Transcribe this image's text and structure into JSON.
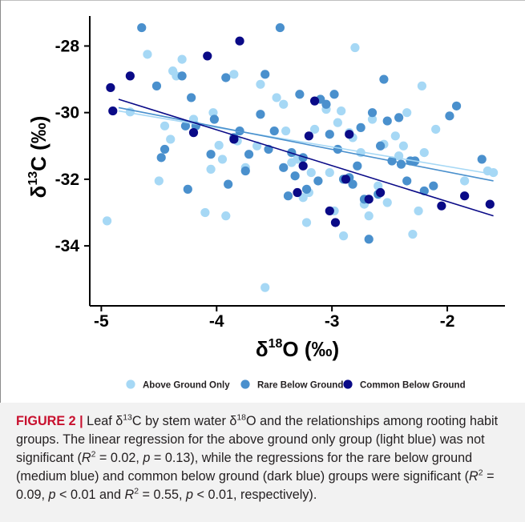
{
  "chart_data": {
    "type": "scatter",
    "xlabel": "δ18O (‰)",
    "ylabel": "δ13C (‰)",
    "xlim": [
      -5.1,
      -1.5
    ],
    "ylim": [
      -35.8,
      -27.1
    ],
    "x_ticks": [
      -5,
      -4,
      -3,
      -2
    ],
    "x_tick_labels": [
      "-5",
      "-4",
      "-3",
      "-2"
    ],
    "y_ticks": [
      -28,
      -30,
      -32,
      -34
    ],
    "y_tick_labels": [
      "-28",
      "-30",
      "-32",
      "-34"
    ],
    "grid": false,
    "legend_position": "bottom",
    "series": [
      {
        "name": "Above Ground Only",
        "color": "#a6d8f5",
        "points": [
          [
            -4.95,
            -33.25
          ],
          [
            -4.75,
            -29.98
          ],
          [
            -4.6,
            -28.25
          ],
          [
            -4.5,
            -32.05
          ],
          [
            -4.45,
            -30.4
          ],
          [
            -4.4,
            -30.8
          ],
          [
            -4.38,
            -28.75
          ],
          [
            -4.35,
            -28.9
          ],
          [
            -4.3,
            -28.4
          ],
          [
            -4.2,
            -30.2
          ],
          [
            -4.1,
            -33.0
          ],
          [
            -4.05,
            -31.7
          ],
          [
            -4.03,
            -30.0
          ],
          [
            -3.98,
            -30.98
          ],
          [
            -3.95,
            -31.4
          ],
          [
            -3.92,
            -33.1
          ],
          [
            -3.85,
            -28.85
          ],
          [
            -3.82,
            -30.85
          ],
          [
            -3.75,
            -31.65
          ],
          [
            -3.65,
            -31.0
          ],
          [
            -3.62,
            -29.15
          ],
          [
            -3.58,
            -35.25
          ],
          [
            -3.48,
            -29.55
          ],
          [
            -3.42,
            -29.75
          ],
          [
            -3.4,
            -30.55
          ],
          [
            -3.35,
            -31.5
          ],
          [
            -3.3,
            -31.4
          ],
          [
            -3.25,
            -32.55
          ],
          [
            -3.22,
            -33.3
          ],
          [
            -3.2,
            -32.4
          ],
          [
            -3.18,
            -31.8
          ],
          [
            -3.15,
            -30.5
          ],
          [
            -3.05,
            -29.9
          ],
          [
            -3.02,
            -31.8
          ],
          [
            -2.98,
            -32.95
          ],
          [
            -2.95,
            -30.3
          ],
          [
            -2.92,
            -29.95
          ],
          [
            -2.9,
            -33.7
          ],
          [
            -2.85,
            -30.6
          ],
          [
            -2.82,
            -30.75
          ],
          [
            -2.8,
            -28.05
          ],
          [
            -2.75,
            -31.2
          ],
          [
            -2.72,
            -32.75
          ],
          [
            -2.68,
            -33.1
          ],
          [
            -2.65,
            -30.2
          ],
          [
            -2.6,
            -32.2
          ],
          [
            -2.55,
            -30.95
          ],
          [
            -2.52,
            -32.7
          ],
          [
            -2.45,
            -30.7
          ],
          [
            -2.42,
            -31.3
          ],
          [
            -2.38,
            -31.0
          ],
          [
            -2.35,
            -30.0
          ],
          [
            -2.3,
            -33.65
          ],
          [
            -2.25,
            -32.95
          ],
          [
            -2.22,
            -29.2
          ],
          [
            -2.2,
            -31.2
          ],
          [
            -2.1,
            -30.5
          ],
          [
            -1.85,
            -32.05
          ],
          [
            -1.65,
            -31.75
          ],
          [
            -1.6,
            -31.8
          ]
        ],
        "trend": [
          [
            -4.85,
            -29.95
          ],
          [
            -1.6,
            -31.85
          ]
        ]
      },
      {
        "name": "Rare Below Ground",
        "color": "#4a90cd",
        "points": [
          [
            -4.65,
            -27.45
          ],
          [
            -4.52,
            -29.2
          ],
          [
            -4.48,
            -31.35
          ],
          [
            -4.45,
            -31.1
          ],
          [
            -4.3,
            -28.9
          ],
          [
            -4.27,
            -30.4
          ],
          [
            -4.25,
            -32.3
          ],
          [
            -4.22,
            -29.55
          ],
          [
            -4.18,
            -30.4
          ],
          [
            -4.05,
            -31.25
          ],
          [
            -4.02,
            -30.2
          ],
          [
            -3.92,
            -28.95
          ],
          [
            -3.9,
            -32.15
          ],
          [
            -3.85,
            -30.75
          ],
          [
            -3.8,
            -30.55
          ],
          [
            -3.75,
            -31.75
          ],
          [
            -3.72,
            -31.25
          ],
          [
            -3.58,
            -28.85
          ],
          [
            -3.55,
            -31.1
          ],
          [
            -3.5,
            -30.55
          ],
          [
            -3.45,
            -27.45
          ],
          [
            -3.42,
            -31.65
          ],
          [
            -3.38,
            -32.5
          ],
          [
            -3.35,
            -31.2
          ],
          [
            -3.32,
            -31.9
          ],
          [
            -3.28,
            -29.45
          ],
          [
            -3.25,
            -31.35
          ],
          [
            -3.22,
            -32.3
          ],
          [
            -3.12,
            -32.05
          ],
          [
            -3.1,
            -29.6
          ],
          [
            -3.05,
            -29.75
          ],
          [
            -3.02,
            -30.65
          ],
          [
            -2.98,
            -29.45
          ],
          [
            -2.95,
            -31.1
          ],
          [
            -2.9,
            -32.0
          ],
          [
            -2.85,
            -31.95
          ],
          [
            -2.82,
            -32.15
          ],
          [
            -2.78,
            -31.6
          ],
          [
            -2.75,
            -30.45
          ],
          [
            -2.72,
            -32.6
          ],
          [
            -2.68,
            -33.8
          ],
          [
            -2.65,
            -30.0
          ],
          [
            -2.6,
            -32.45
          ],
          [
            -2.55,
            -29.0
          ],
          [
            -2.52,
            -30.25
          ],
          [
            -2.48,
            -31.45
          ],
          [
            -2.42,
            -30.15
          ],
          [
            -2.4,
            -31.55
          ],
          [
            -2.35,
            -32.05
          ],
          [
            -2.32,
            -31.45
          ],
          [
            -2.28,
            -31.45
          ],
          [
            -2.2,
            -32.35
          ],
          [
            -1.98,
            -30.1
          ],
          [
            -1.92,
            -29.8
          ],
          [
            -1.7,
            -31.4
          ],
          [
            -2.58,
            -31.0
          ],
          [
            -3.62,
            -30.05
          ],
          [
            -2.12,
            -32.2
          ]
        ],
        "trend": [
          [
            -4.85,
            -29.85
          ],
          [
            -1.6,
            -32.05
          ]
        ]
      },
      {
        "name": "Common Below Ground",
        "color": "#0a0a87",
        "points": [
          [
            -4.92,
            -29.25
          ],
          [
            -4.9,
            -29.95
          ],
          [
            -4.75,
            -28.9
          ],
          [
            -4.2,
            -30.6
          ],
          [
            -4.08,
            -28.3
          ],
          [
            -3.85,
            -30.8
          ],
          [
            -3.8,
            -27.85
          ],
          [
            -3.2,
            -30.7
          ],
          [
            -3.15,
            -29.65
          ],
          [
            -3.02,
            -32.95
          ],
          [
            -2.97,
            -33.3
          ],
          [
            -2.88,
            -32.0
          ],
          [
            -2.85,
            -30.65
          ],
          [
            -2.68,
            -32.6
          ],
          [
            -2.58,
            -32.4
          ],
          [
            -2.05,
            -32.8
          ],
          [
            -1.85,
            -32.5
          ],
          [
            -1.63,
            -32.75
          ],
          [
            -3.25,
            -31.6
          ],
          [
            -3.3,
            -32.4
          ]
        ],
        "trend": [
          [
            -4.85,
            -29.6
          ],
          [
            -1.6,
            -33.1
          ]
        ]
      }
    ]
  },
  "legend": {
    "items": [
      {
        "label": "Above Ground Only",
        "color": "#a6d8f5"
      },
      {
        "label": "Rare Below Ground",
        "color": "#4a90cd"
      },
      {
        "label": "Common Below Ground",
        "color": "#0a0a87"
      }
    ]
  },
  "caption": {
    "figure_label": "FIGURE 2 |",
    "text_a": " Leaf δ",
    "sup_13": "13",
    "text_b": "C by stem water δ",
    "sup_18": "18",
    "text_c": "O and the relationships among rooting habit groups. The linear regression for the above ground only group (light blue) was not significant (",
    "r1_sym": "R",
    "r1_exp": "2",
    "r1_val": " = 0.02, ",
    "p1_sym": "p",
    "p1_val": " = 0.13), while the regressions for the rare below ground (medium blue) and common below ground (dark blue) groups were significant (",
    "r2_sym": "R",
    "r2_exp": "2",
    "r2_val": " = 0.09, ",
    "p2_sym": "p",
    "p2_val": " < 0.01 and ",
    "r3_sym": "R",
    "r3_exp": "2",
    "r3_val": " = 0.55, ",
    "p3_sym": "p",
    "p3_val": " < 0.01, respectively)."
  }
}
